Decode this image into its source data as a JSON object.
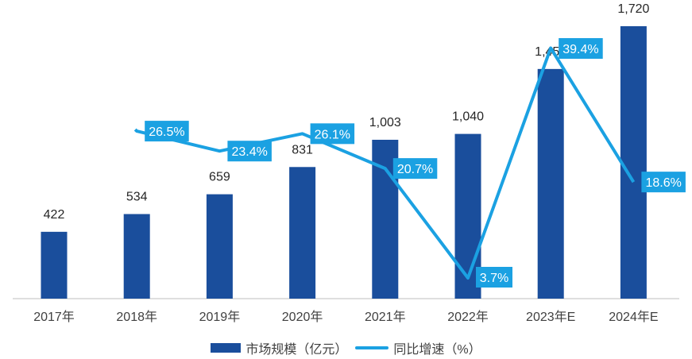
{
  "chart_data": {
    "type": "bar+line",
    "categories": [
      "2017年",
      "2018年",
      "2019年",
      "2020年",
      "2021年",
      "2022年",
      "2023年E",
      "2024年E"
    ],
    "series": [
      {
        "name": "市场规模（亿元）",
        "type": "bar",
        "values": [
          422,
          534,
          659,
          831,
          1003,
          1040,
          1450,
          1720
        ],
        "labels": [
          "422",
          "534",
          "659",
          "831",
          "1,003",
          "1,040",
          "1,450",
          "1,720"
        ],
        "color": "#1a4e9c"
      },
      {
        "name": "同比增速（%）",
        "type": "line",
        "values": [
          null,
          26.5,
          23.4,
          26.1,
          20.7,
          3.7,
          39.4,
          18.6
        ],
        "labels": [
          "",
          "26.5%",
          "23.4%",
          "26.1%",
          "20.7%",
          "3.7%",
          "39.4%",
          "18.6%"
        ],
        "color": "#1ba1e2"
      }
    ],
    "legend": "bottom",
    "grid": false
  }
}
